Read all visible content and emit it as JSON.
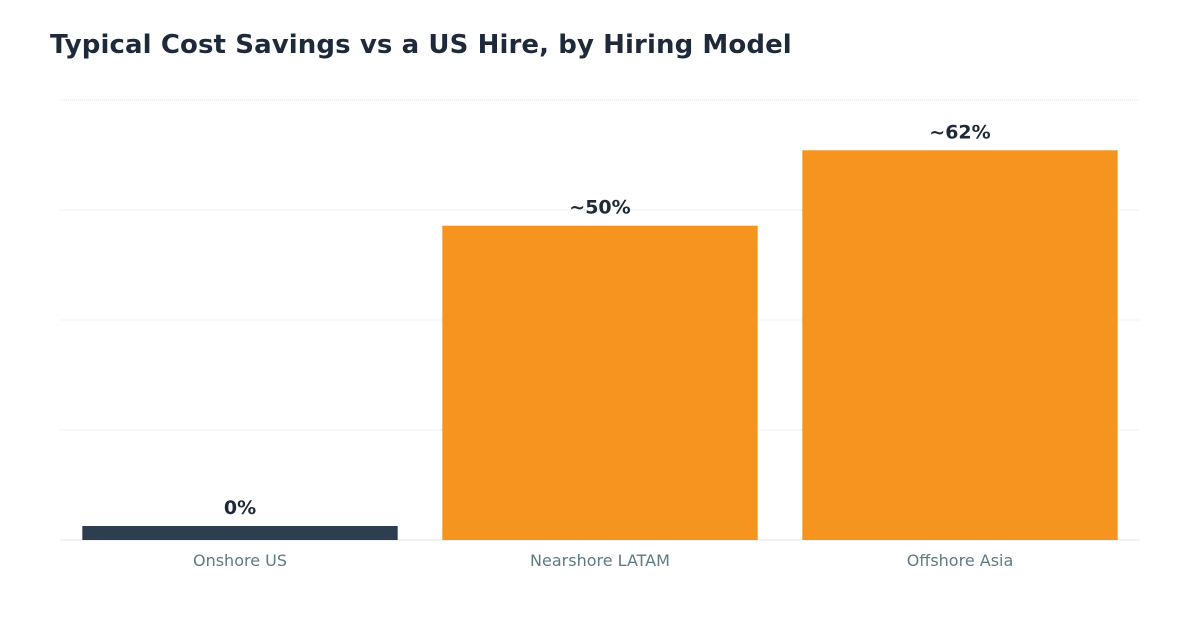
{
  "chart_data": {
    "type": "bar",
    "title": "Typical Cost Savings vs a US Hire, by Hiring Model",
    "xlabel": "",
    "ylabel": "",
    "categories": [
      "Onshore US",
      "Nearshore LATAM",
      "Offshore Asia"
    ],
    "values": [
      0,
      50,
      62
    ],
    "data_labels": [
      "0%",
      "~50%",
      "~62%"
    ],
    "ylim": [
      0,
      70
    ],
    "grid": true,
    "legend": "none",
    "colors": {
      "bars": [
        "#2d3e50",
        "#f5941e",
        "#f5941e"
      ],
      "data_label": "#1e2a3a",
      "tick_label": "#5e7a86",
      "gridline": "#e6e6e6",
      "title": "#1e2a3a"
    }
  }
}
